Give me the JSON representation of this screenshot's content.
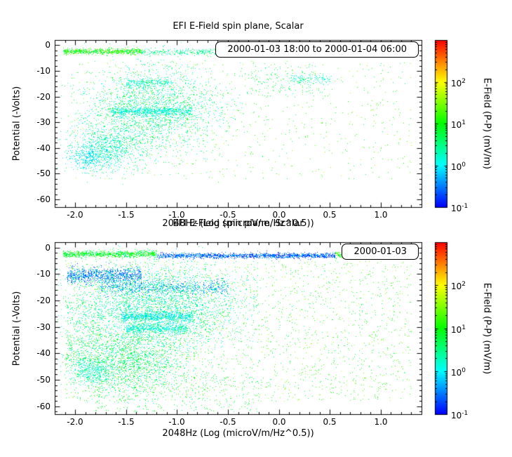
{
  "page": {
    "background": "#ffffff"
  },
  "chart_data": [
    {
      "type": "scatter",
      "title": "EFI  E-Field spin plane, Scalar",
      "xlabel": "2048Hz (Log (microV/m/Hz^0.5))",
      "ylabel": "Potential (-Volts)",
      "legend": "2000-01-03 18:00 to 2000-01-04 06:00",
      "xlim": [
        -2.2,
        1.4
      ],
      "ylim": [
        2,
        -63
      ],
      "xticks": [
        -2,
        -1.5,
        -1,
        -0.5,
        0,
        0.5,
        1
      ],
      "xtick_labels": [
        "-2.0",
        "-1.5",
        "-1.0",
        "-0.5",
        "0.0",
        "0.5",
        "1.0"
      ],
      "yticks": [
        0,
        -10,
        -20,
        -30,
        -40,
        -50,
        -60
      ],
      "ytick_labels": [
        "0",
        "-10",
        "-20",
        "-30",
        "-40",
        "-50",
        "-60"
      ],
      "x_minor_step": 0.1,
      "y_minor_step": 2,
      "colorbar": {
        "label": "E-Field (P-P) (mV/m)",
        "scale": "log",
        "log_range": [
          -1,
          3
        ],
        "tick_base": "10",
        "ticks": [
          {
            "exp": "2",
            "v": 2
          },
          {
            "exp": "1",
            "v": 1
          },
          {
            "exp": "0",
            "v": 0
          },
          {
            "exp": "-1",
            "v": -1
          }
        ]
      },
      "clusters": [
        {
          "n": 700,
          "x": {
            "dist": "uniform",
            "min": -2.12,
            "max": -1.35
          },
          "y": {
            "dist": "gauss",
            "mean": -2.3,
            "sd": 0.55
          },
          "logv": [
            0.4,
            1.6
          ]
        },
        {
          "n": 350,
          "x": {
            "dist": "uniform",
            "min": -1.35,
            "max": -0.3
          },
          "y": {
            "dist": "gauss",
            "mean": -2.6,
            "sd": 0.6
          },
          "logv": [
            0.0,
            0.9
          ]
        },
        {
          "n": 1100,
          "x": {
            "dist": "gauss",
            "mean": -0.08,
            "sd": 0.22
          },
          "y": {
            "dist": "gauss",
            "mean": -3.1,
            "sd": 0.45
          },
          "logv": [
            -0.35,
            0.3
          ]
        },
        {
          "n": 2200,
          "x": {
            "dist": "gauss",
            "mean": -1.25,
            "sd": 0.34
          },
          "y": {
            "dist": "gauss",
            "mean": -25,
            "sd": 8.5
          },
          "logv": [
            -0.1,
            1.0
          ]
        },
        {
          "n": 600,
          "x": {
            "dist": "uniform",
            "min": -1.65,
            "max": -0.85
          },
          "y": {
            "dist": "gauss",
            "mean": -25.6,
            "sd": 0.8
          },
          "logv": [
            -0.2,
            0.5
          ]
        },
        {
          "n": 220,
          "x": {
            "dist": "uniform",
            "min": -1.5,
            "max": -1.05
          },
          "y": {
            "dist": "gauss",
            "mean": -14.6,
            "sd": 0.9
          },
          "logv": [
            -0.1,
            0.5
          ]
        },
        {
          "n": 800,
          "x": {
            "dist": "gauss",
            "mean": -1.7,
            "sd": 0.17
          },
          "y": {
            "dist": "gauss",
            "mean": -40,
            "sd": 4.5
          },
          "logv": [
            -0.2,
            0.7
          ]
        },
        {
          "n": 300,
          "x": {
            "dist": "gauss",
            "mean": -1.88,
            "sd": 0.09
          },
          "y": {
            "dist": "gauss",
            "mean": -44,
            "sd": 2.2
          },
          "logv": [
            -0.35,
            0.25
          ]
        },
        {
          "n": 700,
          "x": {
            "dist": "uniform",
            "min": -2.05,
            "max": 1.3
          },
          "y": {
            "dist": "uniform",
            "min": -52,
            "max": -6
          },
          "logv": [
            0.5,
            1.7
          ]
        },
        {
          "n": 120,
          "x": {
            "dist": "uniform",
            "min": 0.12,
            "max": 0.5
          },
          "y": {
            "dist": "gauss",
            "mean": -13,
            "sd": 0.9
          },
          "logv": [
            -0.1,
            0.5
          ]
        },
        {
          "n": 150,
          "x": {
            "dist": "uniform",
            "min": -0.4,
            "max": 0.4
          },
          "y": {
            "dist": "uniform",
            "min": -20,
            "max": -8
          },
          "logv": [
            0.3,
            1.2
          ]
        }
      ]
    },
    {
      "type": "scatter",
      "title": "EFI  E-Field spin plane, Scalar",
      "xlabel": "2048Hz (Log (microV/m/Hz^0.5))",
      "ylabel": "Potential (-Volts)",
      "legend": "2000-01-03",
      "xlim": [
        -2.2,
        1.4
      ],
      "ylim": [
        2,
        -63
      ],
      "xticks": [
        -2,
        -1.5,
        -1,
        -0.5,
        0,
        0.5,
        1
      ],
      "xtick_labels": [
        "-2.0",
        "-1.5",
        "-1.0",
        "-0.5",
        "0.0",
        "0.5",
        "1.0"
      ],
      "yticks": [
        0,
        -10,
        -20,
        -30,
        -40,
        -50,
        -60
      ],
      "ytick_labels": [
        "0",
        "-10",
        "-20",
        "-30",
        "-40",
        "-50",
        "-60"
      ],
      "x_minor_step": 0.1,
      "y_minor_step": 2,
      "colorbar": {
        "label": "E-Field (P-P) (mV/m)",
        "scale": "log",
        "log_range": [
          -1,
          3
        ],
        "tick_base": "10",
        "ticks": [
          {
            "exp": "2",
            "v": 2
          },
          {
            "exp": "1",
            "v": 1
          },
          {
            "exp": "0",
            "v": 0
          },
          {
            "exp": "-1",
            "v": -1
          }
        ]
      },
      "clusters": [
        {
          "n": 900,
          "x": {
            "dist": "uniform",
            "min": -2.12,
            "max": -1.2
          },
          "y": {
            "dist": "gauss",
            "mean": -2.4,
            "sd": 0.6
          },
          "logv": [
            0.3,
            1.4
          ]
        },
        {
          "n": 1400,
          "x": {
            "dist": "uniform",
            "min": -1.2,
            "max": 0.55
          },
          "y": {
            "dist": "gauss",
            "mean": -3.0,
            "sd": 0.5
          },
          "logv": [
            -1.0,
            -0.2
          ]
        },
        {
          "n": 350,
          "x": {
            "dist": "uniform",
            "min": 0.55,
            "max": 1.05
          },
          "y": {
            "dist": "gauss",
            "mean": -2.6,
            "sd": 0.6
          },
          "logv": [
            0.5,
            1.6
          ]
        },
        {
          "n": 900,
          "x": {
            "dist": "uniform",
            "min": -2.08,
            "max": -1.35
          },
          "y": {
            "dist": "gauss",
            "mean": -10.5,
            "sd": 1.6
          },
          "logv": [
            -0.9,
            -0.1
          ]
        },
        {
          "n": 700,
          "x": {
            "dist": "uniform",
            "min": -1.75,
            "max": -0.5
          },
          "y": {
            "dist": "gauss",
            "mean": -15,
            "sd": 1.4
          },
          "logv": [
            -0.8,
            0.0
          ]
        },
        {
          "n": 3000,
          "x": {
            "dist": "gauss",
            "mean": -1.2,
            "sd": 0.42
          },
          "y": {
            "dist": "gauss",
            "mean": -22,
            "sd": 8
          },
          "logv": [
            -0.2,
            0.9
          ]
        },
        {
          "n": 700,
          "x": {
            "dist": "uniform",
            "min": -1.55,
            "max": -0.85
          },
          "y": {
            "dist": "gauss",
            "mean": -26,
            "sd": 1.0
          },
          "logv": [
            -0.3,
            0.4
          ]
        },
        {
          "n": 500,
          "x": {
            "dist": "uniform",
            "min": -1.5,
            "max": -0.9
          },
          "y": {
            "dist": "gauss",
            "mean": -30.5,
            "sd": 1.0
          },
          "logv": [
            -0.2,
            0.4
          ]
        },
        {
          "n": 1800,
          "x": {
            "dist": "gauss",
            "mean": -1.5,
            "sd": 0.3
          },
          "y": {
            "dist": "gauss",
            "mean": -42,
            "sd": 6.5
          },
          "logv": [
            0.0,
            1.1
          ]
        },
        {
          "n": 350,
          "x": {
            "dist": "gauss",
            "mean": -1.82,
            "sd": 0.1
          },
          "y": {
            "dist": "gauss",
            "mean": -47,
            "sd": 2.5
          },
          "logv": [
            -0.1,
            0.6
          ]
        },
        {
          "n": 2200,
          "x": {
            "dist": "uniform",
            "min": -2.1,
            "max": 1.3
          },
          "y": {
            "dist": "uniform",
            "min": -58,
            "max": -5
          },
          "logv": [
            0.5,
            1.7
          ]
        },
        {
          "n": 350,
          "x": {
            "dist": "uniform",
            "min": -1.8,
            "max": -0.2
          },
          "y": {
            "dist": "uniform",
            "min": -62,
            "max": -48
          },
          "logv": [
            0.4,
            1.2
          ]
        },
        {
          "n": 250,
          "x": {
            "dist": "uniform",
            "min": -2.1,
            "max": -1.75
          },
          "y": {
            "dist": "uniform",
            "min": -45,
            "max": -20
          },
          "logv": [
            0.2,
            1.0
          ]
        }
      ]
    }
  ]
}
